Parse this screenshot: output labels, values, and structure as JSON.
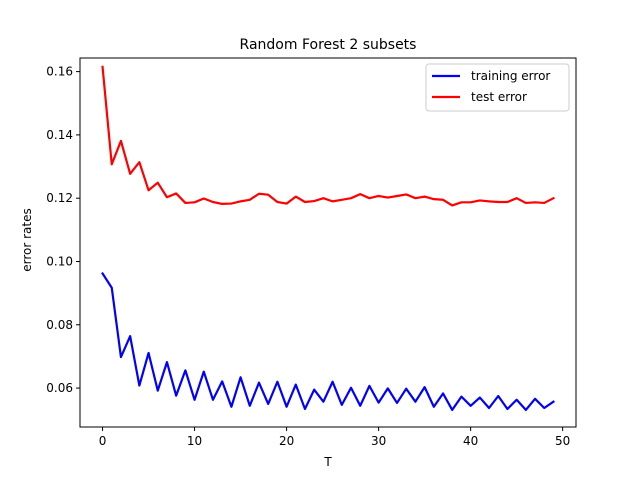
{
  "chart_data": {
    "type": "line",
    "title": "Random Forest 2 subsets",
    "xlabel": "T",
    "ylabel": "error rates",
    "xlim": [
      -2.45,
      51.45
    ],
    "ylim": [
      0.0477,
      0.1643
    ],
    "xticks": [
      0,
      10,
      20,
      30,
      40,
      50
    ],
    "yticks": [
      0.06,
      0.08,
      0.1,
      0.12,
      0.14,
      0.16
    ],
    "ytick_labels": [
      "0.06",
      "0.08",
      "0.10",
      "0.12",
      "0.14",
      "0.16"
    ],
    "grid": false,
    "legend_position": "top-right",
    "x": [
      0,
      1,
      2,
      3,
      4,
      5,
      6,
      7,
      8,
      9,
      10,
      11,
      12,
      13,
      14,
      15,
      16,
      17,
      18,
      19,
      20,
      21,
      22,
      23,
      24,
      25,
      26,
      27,
      28,
      29,
      30,
      31,
      32,
      33,
      34,
      35,
      36,
      37,
      38,
      39,
      40,
      41,
      42,
      43,
      44,
      45,
      46,
      47,
      48,
      49
    ],
    "series": [
      {
        "name": "training error",
        "color": "#0000ff",
        "values": [
          0.0962,
          0.0917,
          0.0698,
          0.0764,
          0.0608,
          0.0711,
          0.0592,
          0.0682,
          0.0576,
          0.0656,
          0.0563,
          0.0652,
          0.0563,
          0.0621,
          0.0541,
          0.0634,
          0.0544,
          0.0617,
          0.055,
          0.062,
          0.0541,
          0.0611,
          0.0534,
          0.0595,
          0.0557,
          0.062,
          0.0547,
          0.0601,
          0.0544,
          0.0607,
          0.0554,
          0.0599,
          0.0553,
          0.0598,
          0.0557,
          0.0603,
          0.0541,
          0.0583,
          0.0531,
          0.0573,
          0.0544,
          0.057,
          0.0537,
          0.0575,
          0.0534,
          0.0563,
          0.0531,
          0.0566,
          0.0537,
          0.0557
        ]
      },
      {
        "name": "test error",
        "color": "#ff0000",
        "values": [
          0.1615,
          0.1307,
          0.1381,
          0.1277,
          0.1314,
          0.1225,
          0.1249,
          0.1203,
          0.1215,
          0.1185,
          0.1187,
          0.1199,
          0.1188,
          0.1182,
          0.1183,
          0.119,
          0.1195,
          0.1214,
          0.1211,
          0.1188,
          0.1183,
          0.1205,
          0.1188,
          0.1191,
          0.12,
          0.119,
          0.1195,
          0.12,
          0.1213,
          0.12,
          0.1207,
          0.1202,
          0.1207,
          0.1212,
          0.12,
          0.1205,
          0.1197,
          0.1195,
          0.1177,
          0.1187,
          0.1187,
          0.1193,
          0.119,
          0.1188,
          0.1188,
          0.12,
          0.1185,
          0.1187,
          0.1185,
          0.12
        ]
      }
    ]
  }
}
